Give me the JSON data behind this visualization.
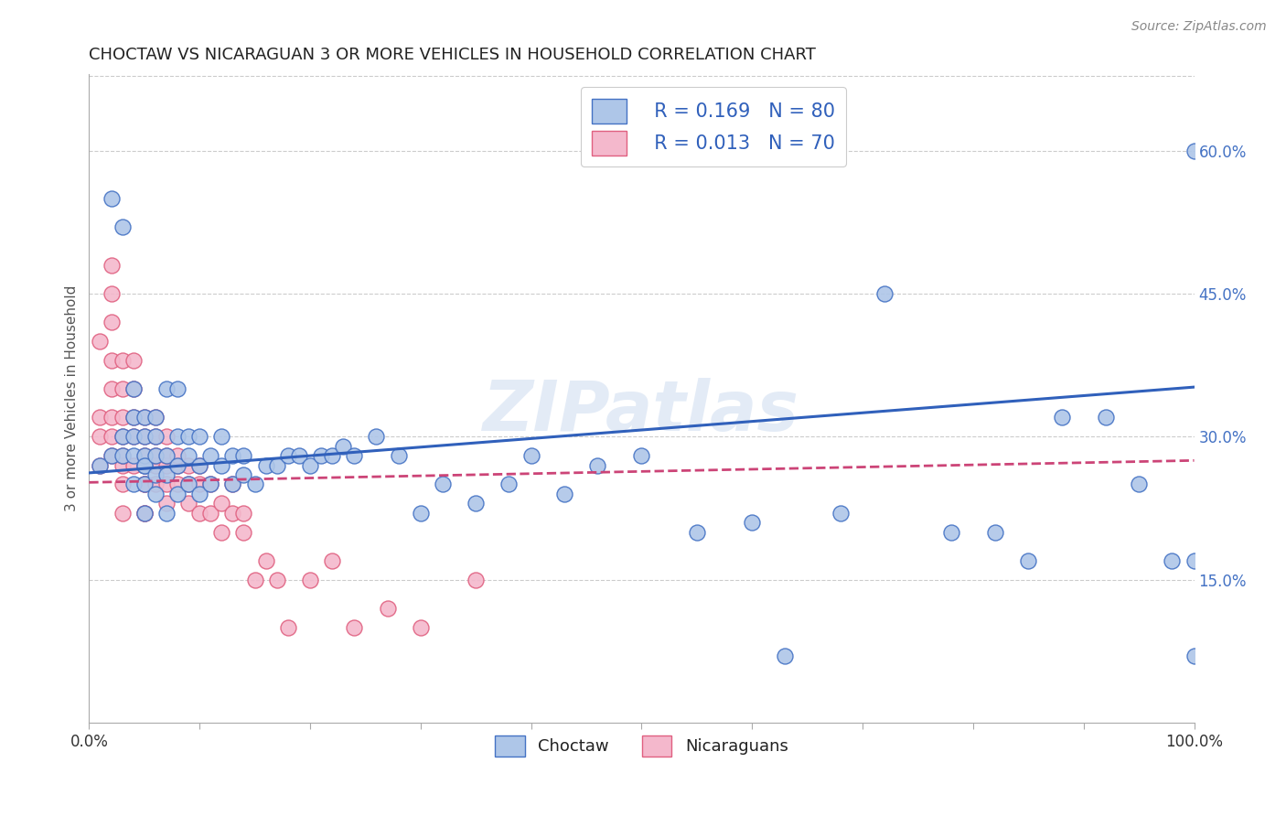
{
  "title": "CHOCTAW VS NICARAGUAN 3 OR MORE VEHICLES IN HOUSEHOLD CORRELATION CHART",
  "source": "Source: ZipAtlas.com",
  "ylabel": "3 or more Vehicles in Household",
  "xlim": [
    0.0,
    1.0
  ],
  "ylim": [
    0.0,
    0.68
  ],
  "x_ticks": [
    0.0,
    0.1,
    0.2,
    0.3,
    0.4,
    0.5,
    0.6,
    0.7,
    0.8,
    0.9,
    1.0
  ],
  "x_tick_labels": [
    "0.0%",
    "",
    "",
    "",
    "",
    "",
    "",
    "",
    "",
    "",
    "100.0%"
  ],
  "y_ticks_right": [
    0.15,
    0.3,
    0.45,
    0.6
  ],
  "y_tick_labels_right": [
    "15.0%",
    "30.0%",
    "45.0%",
    "60.0%"
  ],
  "choctaw_color": "#aec6e8",
  "nicaraguan_color": "#f4b8cc",
  "choctaw_edge_color": "#4472c4",
  "nicaraguan_edge_color": "#e06080",
  "choctaw_line_color": "#3060bb",
  "nicaraguan_line_color": "#cc4477",
  "legend_text_color": "#3060bb",
  "watermark": "ZIPatlas",
  "background_color": "#ffffff",
  "grid_color": "#cccccc",
  "choctaw_line_start_y": 0.262,
  "choctaw_line_end_y": 0.352,
  "nicaraguan_line_start_y": 0.252,
  "nicaraguan_line_end_y": 0.275,
  "choctaw_x": [
    0.01,
    0.02,
    0.02,
    0.03,
    0.03,
    0.03,
    0.04,
    0.04,
    0.04,
    0.04,
    0.04,
    0.05,
    0.05,
    0.05,
    0.05,
    0.05,
    0.05,
    0.05,
    0.06,
    0.06,
    0.06,
    0.06,
    0.06,
    0.07,
    0.07,
    0.07,
    0.07,
    0.08,
    0.08,
    0.08,
    0.08,
    0.09,
    0.09,
    0.09,
    0.1,
    0.1,
    0.1,
    0.11,
    0.11,
    0.12,
    0.12,
    0.13,
    0.13,
    0.14,
    0.14,
    0.15,
    0.16,
    0.17,
    0.18,
    0.19,
    0.2,
    0.21,
    0.22,
    0.23,
    0.24,
    0.26,
    0.28,
    0.3,
    0.32,
    0.35,
    0.38,
    0.4,
    0.43,
    0.46,
    0.5,
    0.55,
    0.6,
    0.63,
    0.68,
    0.72,
    0.78,
    0.82,
    0.85,
    0.88,
    0.92,
    0.95,
    0.98,
    1.0,
    1.0,
    1.0
  ],
  "choctaw_y": [
    0.27,
    0.28,
    0.55,
    0.3,
    0.28,
    0.52,
    0.25,
    0.28,
    0.3,
    0.32,
    0.35,
    0.22,
    0.25,
    0.27,
    0.28,
    0.3,
    0.27,
    0.32,
    0.24,
    0.26,
    0.28,
    0.3,
    0.32,
    0.22,
    0.26,
    0.28,
    0.35,
    0.24,
    0.27,
    0.3,
    0.35,
    0.25,
    0.28,
    0.3,
    0.24,
    0.27,
    0.3,
    0.25,
    0.28,
    0.27,
    0.3,
    0.25,
    0.28,
    0.26,
    0.28,
    0.25,
    0.27,
    0.27,
    0.28,
    0.28,
    0.27,
    0.28,
    0.28,
    0.29,
    0.28,
    0.3,
    0.28,
    0.22,
    0.25,
    0.23,
    0.25,
    0.28,
    0.24,
    0.27,
    0.28,
    0.2,
    0.21,
    0.07,
    0.22,
    0.45,
    0.2,
    0.2,
    0.17,
    0.32,
    0.32,
    0.25,
    0.17,
    0.6,
    0.17,
    0.07
  ],
  "nicaraguan_x": [
    0.01,
    0.01,
    0.01,
    0.01,
    0.02,
    0.02,
    0.02,
    0.02,
    0.02,
    0.02,
    0.02,
    0.02,
    0.03,
    0.03,
    0.03,
    0.03,
    0.03,
    0.03,
    0.03,
    0.03,
    0.04,
    0.04,
    0.04,
    0.04,
    0.04,
    0.05,
    0.05,
    0.05,
    0.05,
    0.05,
    0.05,
    0.05,
    0.05,
    0.06,
    0.06,
    0.06,
    0.06,
    0.06,
    0.07,
    0.07,
    0.07,
    0.07,
    0.07,
    0.08,
    0.08,
    0.08,
    0.09,
    0.09,
    0.09,
    0.1,
    0.1,
    0.1,
    0.11,
    0.11,
    0.12,
    0.12,
    0.13,
    0.13,
    0.14,
    0.14,
    0.15,
    0.16,
    0.17,
    0.18,
    0.2,
    0.22,
    0.24,
    0.27,
    0.3,
    0.35
  ],
  "nicaraguan_y": [
    0.27,
    0.3,
    0.32,
    0.4,
    0.28,
    0.3,
    0.32,
    0.35,
    0.38,
    0.42,
    0.45,
    0.48,
    0.27,
    0.28,
    0.3,
    0.32,
    0.35,
    0.38,
    0.22,
    0.25,
    0.27,
    0.3,
    0.32,
    0.35,
    0.38,
    0.22,
    0.25,
    0.27,
    0.28,
    0.3,
    0.32,
    0.22,
    0.25,
    0.25,
    0.27,
    0.28,
    0.3,
    0.32,
    0.23,
    0.25,
    0.27,
    0.28,
    0.3,
    0.25,
    0.27,
    0.28,
    0.23,
    0.25,
    0.27,
    0.22,
    0.25,
    0.27,
    0.22,
    0.25,
    0.2,
    0.23,
    0.22,
    0.25,
    0.2,
    0.22,
    0.15,
    0.17,
    0.15,
    0.1,
    0.15,
    0.17,
    0.1,
    0.12,
    0.1,
    0.15
  ]
}
